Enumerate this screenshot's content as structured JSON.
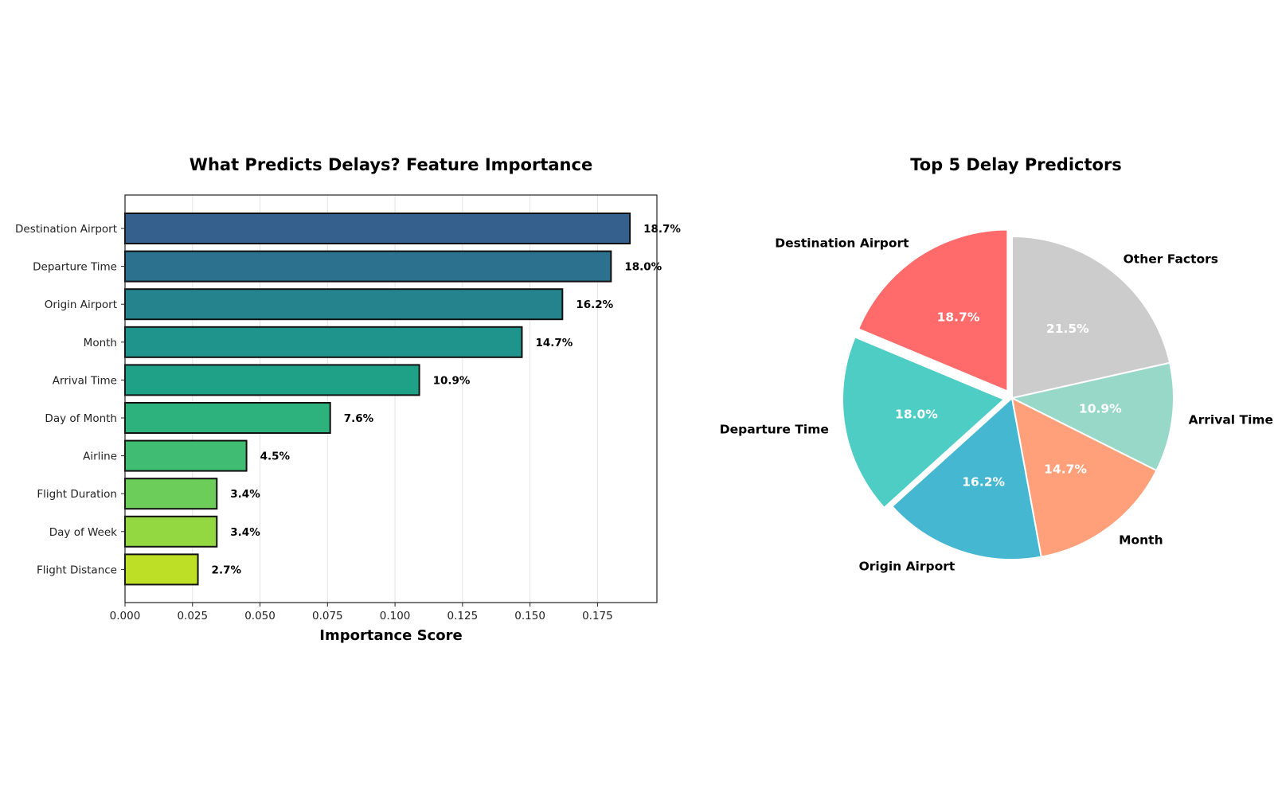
{
  "chart_data": [
    {
      "type": "bar",
      "orientation": "horizontal",
      "title": "What Predicts Delays? Feature Importance",
      "xlabel": "Importance Score",
      "ylabel": "",
      "xlim": [
        0,
        0.197
      ],
      "xticks": [
        0.0,
        0.025,
        0.05,
        0.075,
        0.1,
        0.125,
        0.15,
        0.175
      ],
      "xtick_labels": [
        "0.000",
        "0.025",
        "0.050",
        "0.075",
        "0.100",
        "0.125",
        "0.150",
        "0.175"
      ],
      "grid": "vertical",
      "categories": [
        "Destination Airport",
        "Departure Time",
        "Origin Airport",
        "Month",
        "Arrival Time",
        "Day of Month",
        "Airline",
        "Flight Duration",
        "Day of Week",
        "Flight Distance"
      ],
      "values": [
        0.187,
        0.18,
        0.162,
        0.147,
        0.109,
        0.076,
        0.045,
        0.034,
        0.034,
        0.027
      ],
      "value_labels": [
        "18.7%",
        "18.0%",
        "16.2%",
        "14.7%",
        "10.9%",
        "7.6%",
        "4.5%",
        "3.4%",
        "3.4%",
        "2.7%"
      ],
      "colors": [
        "#355f8d",
        "#2c718e",
        "#25838e",
        "#1f948c",
        "#1fa187",
        "#2db27d",
        "#40bd72",
        "#6ccd5a",
        "#93d741",
        "#bddf26"
      ]
    },
    {
      "type": "pie",
      "title": "Top 5 Delay Predictors",
      "categories": [
        "Destination Airport",
        "Departure Time",
        "Origin Airport",
        "Month",
        "Arrival Time",
        "Other Factors"
      ],
      "values": [
        18.7,
        18.0,
        16.2,
        14.7,
        10.9,
        21.5
      ],
      "value_labels": [
        "18.7%",
        "18.0%",
        "16.2%",
        "14.7%",
        "10.9%",
        "21.5%"
      ],
      "colors": [
        "#ff6b6b",
        "#4ecdc4",
        "#45b7d1",
        "#ffa07a",
        "#98d8c8",
        "#cccccc"
      ],
      "exploded": [
        "Destination Airport",
        "Departure Time"
      ]
    }
  ]
}
